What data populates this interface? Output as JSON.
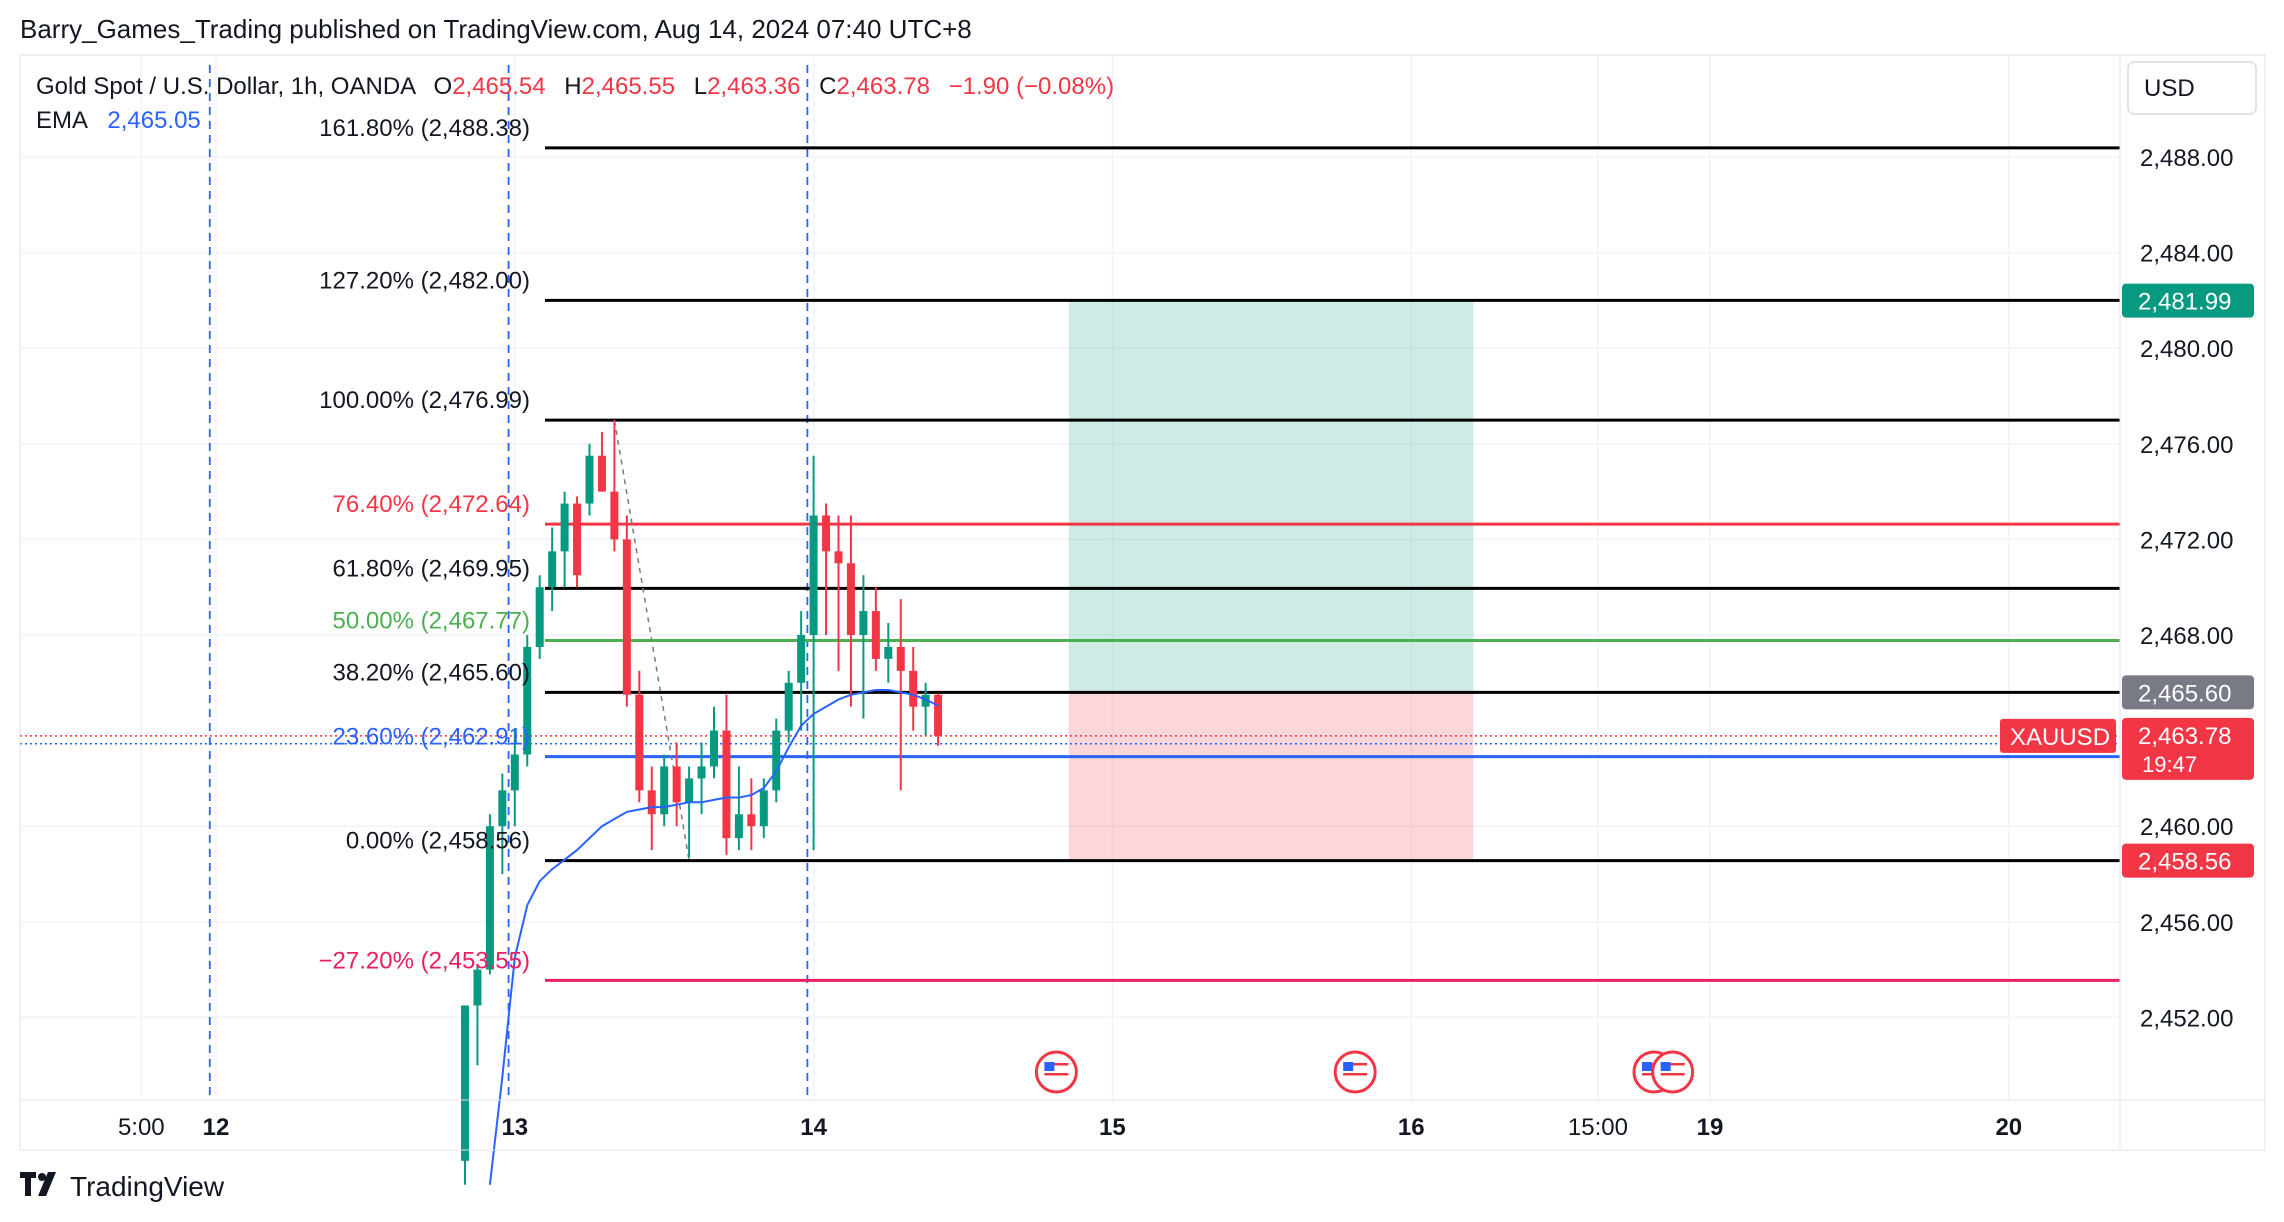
{
  "header": {
    "publisher": "Barry_Games_Trading published on TradingView.com, Aug 14, 2024 07:40 UTC+8"
  },
  "legend": {
    "symbol": "Gold Spot / U.S. Dollar, 1h, OANDA",
    "open_label": "O",
    "open": "2,465.54",
    "high_label": "H",
    "high": "2,465.55",
    "low_label": "L",
    "low": "2,463.36",
    "close_label": "C",
    "close": "2,463.78",
    "change": "−1.90 (−0.08%)",
    "ema_label": "EMA",
    "ema_value": "2,465.05"
  },
  "currency_button": "USD",
  "footer": {
    "brand": "TradingView"
  },
  "colors": {
    "up": "#089981",
    "down": "#f23645",
    "ema": "#2962ff",
    "grid": "#f0f3fa"
  },
  "chart_data": {
    "type": "candlestick",
    "ylim": [
      2449,
      2490
    ],
    "y_ticks": [
      "2,488.00",
      "2,484.00",
      "2,480.00",
      "2,476.00",
      "2,472.00",
      "2,468.00",
      "2,460.00",
      "2,456.00",
      "2,452.00"
    ],
    "x_ticks": [
      {
        "label": "5:00",
        "t": -6
      },
      {
        "label": "12",
        "t": 0,
        "bold": true
      },
      {
        "label": "13",
        "t": 24,
        "bold": true
      },
      {
        "label": "14",
        "t": 48,
        "bold": true
      },
      {
        "label": "15",
        "t": 72,
        "bold": true
      },
      {
        "label": "16",
        "t": 96,
        "bold": true
      },
      {
        "label": "15:00",
        "t": 111
      },
      {
        "label": "19",
        "t": 120,
        "bold": true
      },
      {
        "label": "20",
        "t": 144,
        "bold": true
      }
    ],
    "vertical_markers": [
      -0.5,
      23.5,
      47.5
    ],
    "fib_levels": [
      {
        "label": "161.80% (2,488.38)",
        "value": 2488.38,
        "color": "#000000",
        "text_color": "#131722"
      },
      {
        "label": "127.20% (2,482.00)",
        "value": 2482.0,
        "color": "#000000",
        "text_color": "#131722"
      },
      {
        "label": "100.00% (2,476.99)",
        "value": 2476.99,
        "color": "#000000",
        "text_color": "#131722"
      },
      {
        "label": "76.40% (2,472.64)",
        "value": 2472.64,
        "color": "#f23645",
        "text_color": "#f23645"
      },
      {
        "label": "61.80% (2,469.95)",
        "value": 2469.95,
        "color": "#000000",
        "text_color": "#131722"
      },
      {
        "label": "50.00% (2,467.77)",
        "value": 2467.77,
        "color": "#4caf50",
        "text_color": "#4caf50"
      },
      {
        "label": "38.20% (2,465.60)",
        "value": 2465.6,
        "color": "#000000",
        "text_color": "#131722"
      },
      {
        "label": "23.60% (2,462.91)",
        "value": 2462.91,
        "color": "#2962ff",
        "text_color": "#2962ff"
      },
      {
        "label": "0.00% (2,458.56)",
        "value": 2458.56,
        "color": "#000000",
        "text_color": "#131722"
      },
      {
        "label": "−27.20% (2,453.55)",
        "value": 2453.55,
        "color": "#e91e63",
        "text_color": "#e91e63"
      }
    ],
    "position_tool": {
      "t_start": 68.5,
      "t_end": 101,
      "target": 2481.99,
      "entry": 2465.6,
      "stop": 2458.56
    },
    "price_labels": [
      {
        "text": "2,481.99",
        "value": 2481.99,
        "bg": "#089981",
        "color": "#ffffff"
      },
      {
        "text": "2,465.60",
        "value": 2465.6,
        "bg": "#787b86",
        "color": "#ffffff"
      },
      {
        "text": "2,463.78",
        "sub": "19:47",
        "value": 2463.78,
        "bg": "#f23645",
        "color": "#ffffff",
        "tag": "XAUUSD"
      },
      {
        "text": "2,458.56",
        "value": 2458.56,
        "bg": "#f23645",
        "color": "#ffffff"
      }
    ],
    "current_price": 2463.78,
    "ema_reference": 2463.7,
    "event_flags": [
      67.5,
      91.5,
      115.5,
      117
    ],
    "candles": [
      [
        20,
        2446.0,
        2452.5,
        2445.0,
        2452.5
      ],
      [
        21,
        2452.5,
        2454.2,
        2450.0,
        2454.0
      ],
      [
        22,
        2454.0,
        2460.5,
        2453.8,
        2460.0
      ],
      [
        23,
        2460.0,
        2462.2,
        2458.0,
        2461.5
      ],
      [
        24,
        2461.5,
        2464.0,
        2460.0,
        2463.0
      ],
      [
        25,
        2463.0,
        2468.0,
        2462.5,
        2467.5
      ],
      [
        26,
        2467.5,
        2470.5,
        2467.0,
        2470.0
      ],
      [
        27,
        2470.0,
        2472.5,
        2469.0,
        2471.5
      ],
      [
        28,
        2471.5,
        2474.0,
        2470.0,
        2473.5
      ],
      [
        29,
        2473.5,
        2473.8,
        2470.0,
        2470.5
      ],
      [
        30,
        2473.5,
        2476.0,
        2473.0,
        2475.5
      ],
      [
        31,
        2475.5,
        2476.5,
        2474.0,
        2474.0
      ],
      [
        32,
        2474.0,
        2476.99,
        2471.5,
        2472.0
      ],
      [
        33,
        2472.0,
        2473.0,
        2465.0,
        2465.5
      ],
      [
        34,
        2465.5,
        2466.5,
        2461.0,
        2461.5
      ],
      [
        35,
        2461.5,
        2462.5,
        2459.0,
        2460.5
      ],
      [
        36,
        2460.5,
        2463.0,
        2460.0,
        2462.5
      ],
      [
        37,
        2462.5,
        2463.5,
        2460.0,
        2461.0
      ],
      [
        38,
        2461.0,
        2462.5,
        2458.7,
        2462.0
      ],
      [
        39,
        2462.0,
        2463.5,
        2460.5,
        2462.5
      ],
      [
        40,
        2462.5,
        2465.0,
        2462.0,
        2464.0
      ],
      [
        41,
        2464.0,
        2465.5,
        2458.8,
        2459.5
      ],
      [
        42,
        2459.5,
        2462.5,
        2459.0,
        2460.5
      ],
      [
        43,
        2460.5,
        2462.0,
        2459.0,
        2460.0
      ],
      [
        44,
        2460.0,
        2462.0,
        2459.5,
        2461.5
      ],
      [
        45,
        2461.5,
        2464.5,
        2461.0,
        2464.0
      ],
      [
        46,
        2464.0,
        2466.5,
        2463.5,
        2466.0
      ],
      [
        47,
        2466.0,
        2469.0,
        2464.0,
        2468.0
      ],
      [
        48,
        2468.0,
        2475.5,
        2459.0,
        2473.0
      ],
      [
        49,
        2473.0,
        2473.5,
        2468.0,
        2471.5
      ],
      [
        50,
        2471.5,
        2473.0,
        2466.5,
        2471.0
      ],
      [
        51,
        2471.0,
        2473.0,
        2465.0,
        2468.0
      ],
      [
        52,
        2468.0,
        2470.5,
        2464.5,
        2469.0
      ],
      [
        53,
        2469.0,
        2470.0,
        2466.5,
        2467.0
      ],
      [
        54,
        2467.0,
        2468.5,
        2466.0,
        2467.5
      ],
      [
        55,
        2467.5,
        2469.5,
        2461.5,
        2466.5
      ],
      [
        56,
        2466.5,
        2467.5,
        2464.0,
        2465.0
      ],
      [
        57,
        2465.0,
        2466.0,
        2463.8,
        2465.5
      ],
      [
        58,
        2465.5,
        2465.55,
        2463.36,
        2463.78
      ]
    ],
    "ema": [
      [
        22,
        2445.0
      ],
      [
        23,
        2449.5
      ],
      [
        24,
        2454.5
      ],
      [
        25,
        2456.7
      ],
      [
        26,
        2457.7
      ],
      [
        27,
        2458.2
      ],
      [
        28,
        2458.6
      ],
      [
        29,
        2459.0
      ],
      [
        30,
        2459.5
      ],
      [
        31,
        2460.0
      ],
      [
        32,
        2460.3
      ],
      [
        33,
        2460.6
      ],
      [
        34,
        2460.7
      ],
      [
        35,
        2460.8
      ],
      [
        36,
        2460.8
      ],
      [
        37,
        2460.9
      ],
      [
        38,
        2461.0
      ],
      [
        39,
        2461.0
      ],
      [
        40,
        2461.1
      ],
      [
        41,
        2461.2
      ],
      [
        42,
        2461.2
      ],
      [
        43,
        2461.3
      ],
      [
        44,
        2461.6
      ],
      [
        45,
        2462.3
      ],
      [
        46,
        2463.3
      ],
      [
        47,
        2464.2
      ],
      [
        48,
        2464.7
      ],
      [
        49,
        2465.0
      ],
      [
        50,
        2465.3
      ],
      [
        51,
        2465.5
      ],
      [
        52,
        2465.6
      ],
      [
        53,
        2465.7
      ],
      [
        54,
        2465.7
      ],
      [
        55,
        2465.6
      ],
      [
        56,
        2465.5
      ],
      [
        57,
        2465.3
      ],
      [
        58,
        2465.05
      ]
    ],
    "zigzag": [
      [
        32,
        2476.99
      ],
      [
        38,
        2458.56
      ]
    ]
  }
}
